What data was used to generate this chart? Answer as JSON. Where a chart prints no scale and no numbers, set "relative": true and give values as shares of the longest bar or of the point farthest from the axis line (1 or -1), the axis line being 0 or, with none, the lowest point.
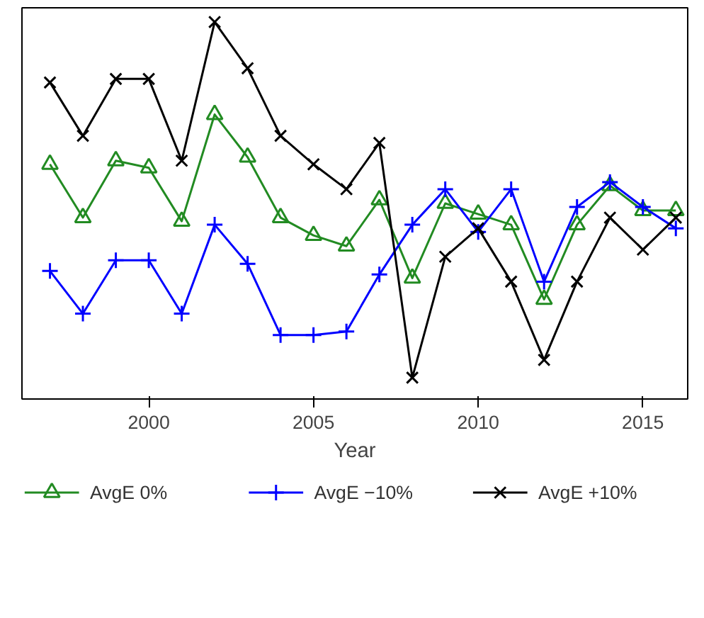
{
  "chart_data": {
    "type": "line",
    "relative": true,
    "xlabel": "Year",
    "x": [
      1997,
      1998,
      1999,
      2000,
      2001,
      2002,
      2003,
      2004,
      2005,
      2006,
      2007,
      2008,
      2009,
      2010,
      2011,
      2012,
      2013,
      2014,
      2015,
      2016
    ],
    "xlim": [
      1996.15,
      2016.36
    ],
    "xticks": [
      2000,
      2005,
      2010,
      2015
    ],
    "grid": false,
    "legend": "bottom",
    "line_style": "solid",
    "series": [
      {
        "name": "AvgE 0%",
        "color": "#228b22",
        "marker": "triangle",
        "values": [
          0.6,
          0.45,
          0.61,
          0.59,
          0.44,
          0.74,
          0.62,
          0.45,
          0.4,
          0.37,
          0.5,
          0.28,
          0.49,
          0.46,
          0.43,
          0.22,
          0.43,
          0.54,
          0.47,
          0.47
        ]
      },
      {
        "name": "AvgE −10%",
        "color": "#0000ff",
        "marker": "cross",
        "values": [
          0.3,
          0.18,
          0.33,
          0.33,
          0.18,
          0.43,
          0.32,
          0.12,
          0.12,
          0.13,
          0.29,
          0.43,
          0.53,
          0.41,
          0.53,
          0.27,
          0.48,
          0.55,
          0.48,
          0.42
        ]
      },
      {
        "name": "AvgE +10%",
        "color": "#000000",
        "marker": "x",
        "values": [
          0.83,
          0.68,
          0.84,
          0.84,
          0.61,
          1.0,
          0.87,
          0.68,
          0.6,
          0.53,
          0.66,
          0.0,
          0.34,
          0.42,
          0.27,
          0.05,
          0.27,
          0.45,
          0.36,
          0.45
        ]
      }
    ]
  }
}
